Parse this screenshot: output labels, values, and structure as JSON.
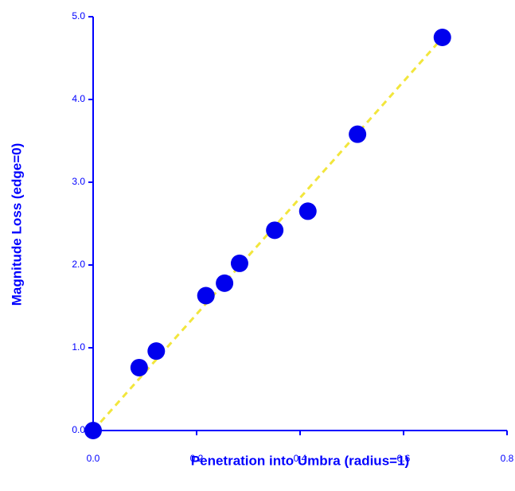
{
  "chart_data": {
    "type": "scatter",
    "x_label": "Penetration into Umbra (radius=1)",
    "y_label": "Magnitude Loss (edge=0)",
    "x": [
      0,
      0.089,
      0.122,
      0.218,
      0.254,
      0.283,
      0.351,
      0.415,
      0.511,
      0.675
    ],
    "values": [
      0,
      0.76,
      0.96,
      1.63,
      1.78,
      2.02,
      2.42,
      2.65,
      3.58,
      4.75
    ],
    "color": "#0000ee",
    "fit_line": {
      "x": [
        0,
        0.68
      ],
      "values": [
        0,
        4.78
      ],
      "color": "#f2e63c"
    },
    "xlim": [
      0,
      0.8
    ],
    "xticks": [
      {
        "value": 0,
        "label": "0.0"
      },
      0.2,
      0.4,
      0.6,
      0.8
    ],
    "ylim": [
      0,
      5
    ],
    "yticks": [
      {
        "value": 0,
        "label": "0.0"
      },
      {
        "value": 1,
        "label": "1.0"
      },
      {
        "value": 2,
        "label": "2.0"
      },
      {
        "value": 3,
        "label": "3.0"
      },
      {
        "value": 4,
        "label": "4.0"
      },
      {
        "value": 5,
        "label": "5.0"
      }
    ],
    "axis_color": "#0000ff"
  }
}
